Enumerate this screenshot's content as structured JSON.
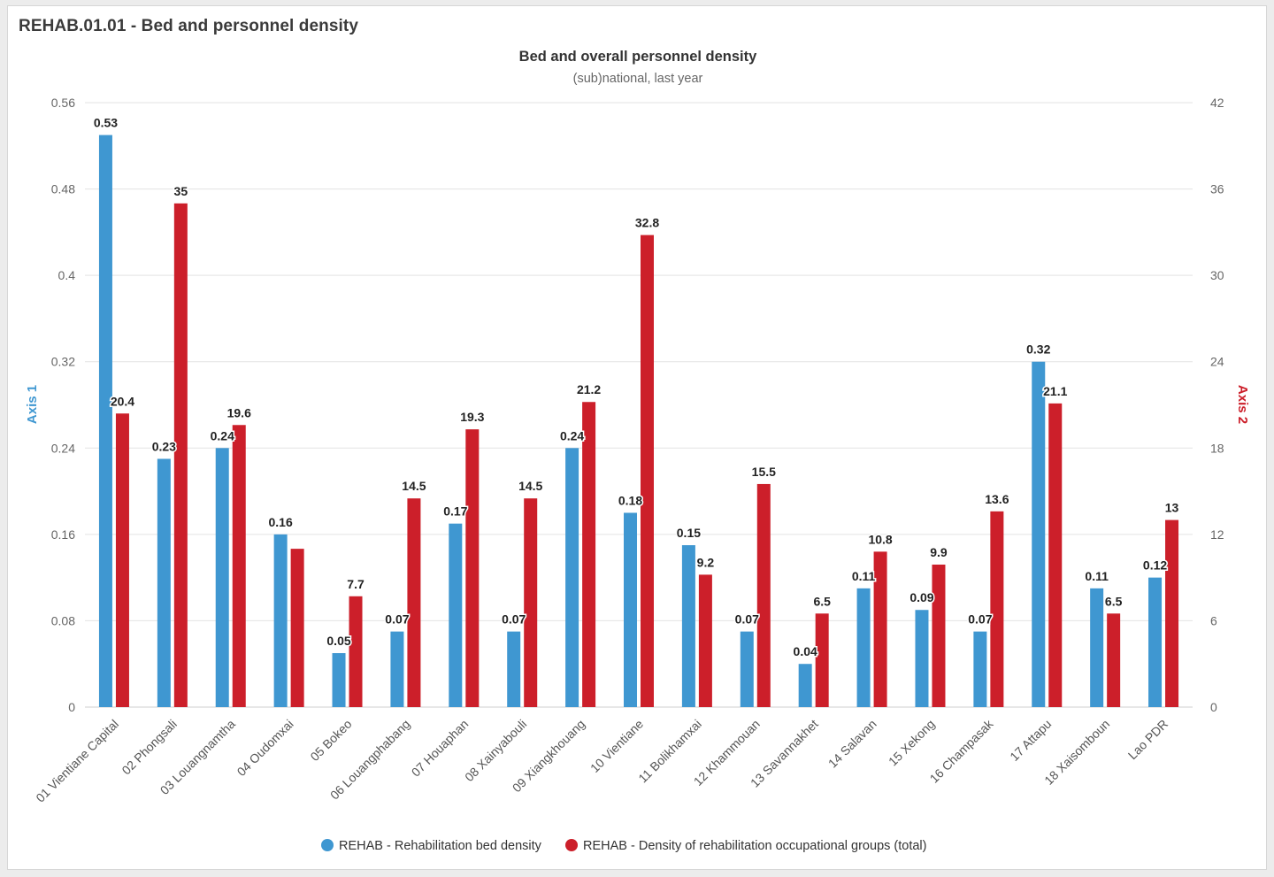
{
  "panel": {
    "title": "REHAB.01.01 - Bed and personnel density"
  },
  "colors": {
    "series1": "#3f97d1",
    "series2": "#cc1f2a",
    "axis1_label": "#3f97d1",
    "axis2_label": "#cc1f2a",
    "grid": "#e3e3e3",
    "text": "#555555"
  },
  "chart_data": {
    "type": "bar",
    "title": "Bed and overall personnel density",
    "subtitle": "(sub)national, last year",
    "categories": [
      "01 Vientiane Capital",
      "02 Phongsali",
      "03 Louangnamtha",
      "04 Oudomxai",
      "05 Bokeo",
      "06 Louangphabang",
      "07 Houaphan",
      "08 Xainyabouli",
      "09 Xiangkhouang",
      "10 Vientiane",
      "11 Bolikhamxai",
      "12 Khammouan",
      "13 Savannakhet",
      "14 Salavan",
      "15 Xekong",
      "16 Champasak",
      "17 Attapu",
      "18 Xaisomboun",
      "Lao PDR"
    ],
    "series": [
      {
        "name": "REHAB - Rehabilitation bed density",
        "axis": "left",
        "values": [
          0.53,
          0.23,
          0.24,
          0.16,
          0.05,
          0.07,
          0.17,
          0.07,
          0.24,
          0.18,
          0.15,
          0.07,
          0.04,
          0.11,
          0.09,
          0.07,
          0.32,
          0.11,
          0.12
        ],
        "labels": [
          "0.53",
          "0.23",
          "0.24",
          "0.16",
          "0.05",
          "0.07",
          "0.17",
          "0.07",
          "0.24",
          "0.18",
          "0.15",
          "0.07",
          "0.04",
          "0.11",
          "0.09",
          "0.07",
          "0.32",
          "0.11",
          "0.12"
        ]
      },
      {
        "name": "REHAB - Density of rehabilitation occupational groups (total)",
        "axis": "right",
        "values": [
          20.4,
          35,
          19.6,
          11,
          7.7,
          14.5,
          19.3,
          14.5,
          21.2,
          32.8,
          9.2,
          15.5,
          6.5,
          10.8,
          9.9,
          13.6,
          21.1,
          6.5,
          13
        ],
        "labels": [
          "20.4",
          "35",
          "19.6",
          "",
          "7.7",
          "14.5",
          "19.3",
          "14.5",
          "21.2",
          "32.8",
          "9.2",
          "15.5",
          "6.5",
          "10.8",
          "9.9",
          "13.6",
          "21.1",
          "6.5",
          "13"
        ]
      }
    ],
    "y1": {
      "label": "Axis 1",
      "lim": [
        0,
        0.56
      ],
      "ticks": [
        "0",
        "0.08",
        "0.16",
        "0.24",
        "0.32",
        "0.4",
        "0.48",
        "0.56"
      ]
    },
    "y2": {
      "label": "Axis 2",
      "lim": [
        0,
        42
      ],
      "ticks": [
        "0",
        "6",
        "12",
        "18",
        "24",
        "30",
        "36",
        "42"
      ]
    },
    "grid": true,
    "legend_position": "bottom-center"
  }
}
